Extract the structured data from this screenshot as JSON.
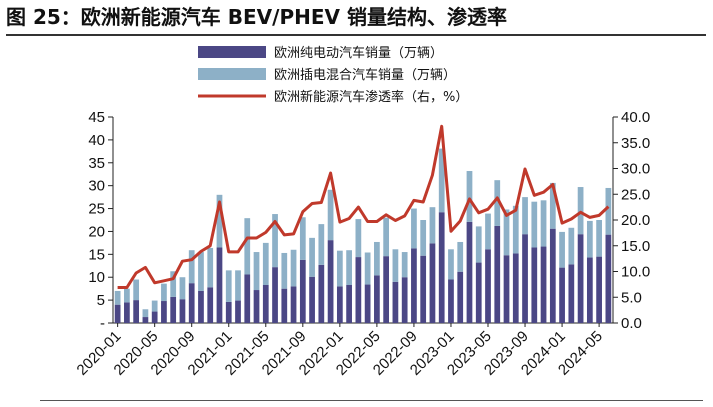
{
  "title": "图 25：欧洲新能源汽车 BEV/PHEV 销量结构、渗透率",
  "chart_data": {
    "type": "bar",
    "stacked": true,
    "colors": {
      "bev": "#4b4785",
      "phev": "#8db0c7",
      "rate": "#c0392b"
    },
    "legend": [
      "欧洲纯电动汽车销量（万辆）",
      "欧洲插电混合汽车销量（万辆）",
      "欧洲新能源汽车渗透率（右，%）"
    ],
    "categories": [
      "2020-01",
      "2020-02",
      "2020-03",
      "2020-04",
      "2020-05",
      "2020-06",
      "2020-07",
      "2020-08",
      "2020-09",
      "2020-10",
      "2020-11",
      "2020-12",
      "2021-01",
      "2021-02",
      "2021-03",
      "2021-04",
      "2021-05",
      "2021-06",
      "2021-07",
      "2021-08",
      "2021-09",
      "2021-10",
      "2021-11",
      "2021-12",
      "2022-01",
      "2022-02",
      "2022-03",
      "2022-04",
      "2022-05",
      "2022-06",
      "2022-07",
      "2022-08",
      "2022-09",
      "2022-10",
      "2022-11",
      "2022-12",
      "2023-01",
      "2023-02",
      "2023-03",
      "2023-04",
      "2023-05",
      "2023-06",
      "2023-07",
      "2023-08",
      "2023-09",
      "2023-10",
      "2023-11",
      "2023-12",
      "2024-01",
      "2024-02",
      "2024-03",
      "2024-04",
      "2024-05",
      "2024-06"
    ],
    "x_tick_labels": [
      "2020-01",
      "2020-05",
      "2020-09",
      "2021-01",
      "2021-05",
      "2021-09",
      "2022-01",
      "2022-05",
      "2022-09",
      "2023-01",
      "2023-05",
      "2023-09",
      "2024-01",
      "2024-05"
    ],
    "series": [
      {
        "name": "欧洲纯电动汽车销量（万辆）",
        "axis": "left",
        "values": [
          4.0,
          4.5,
          5.0,
          1.3,
          2.5,
          4.8,
          5.7,
          5.2,
          8.7,
          7.0,
          7.8,
          16.5,
          4.6,
          4.9,
          10.6,
          7.2,
          8.3,
          12.2,
          7.5,
          8.0,
          13.8,
          10.1,
          12.7,
          18.1,
          8.0,
          8.3,
          14.4,
          8.4,
          10.4,
          14.6,
          9.0,
          10.0,
          16.3,
          14.7,
          17.4,
          24.2,
          9.5,
          11.2,
          22.1,
          13.2,
          16.1,
          21.2,
          14.8,
          15.2,
          19.4,
          16.5,
          16.7,
          20.6,
          12.1,
          12.8,
          19.4,
          14.3,
          14.5,
          19.3
        ]
      },
      {
        "name": "欧洲插电混合汽车销量（万辆）",
        "axis": "left",
        "values": [
          3.0,
          3.0,
          4.5,
          1.7,
          2.4,
          3.8,
          5.6,
          4.8,
          7.2,
          8.5,
          8.6,
          11.5,
          6.9,
          6.6,
          12.3,
          8.3,
          9.2,
          11.6,
          7.8,
          8.0,
          9.3,
          8.5,
          8.9,
          11.0,
          7.8,
          7.6,
          8.3,
          7.0,
          7.3,
          8.4,
          7.1,
          5.5,
          8.7,
          7.8,
          7.9,
          13.9,
          6.6,
          6.5,
          11.1,
          7.9,
          7.8,
          10.0,
          10.0,
          10.4,
          8.1,
          10.0,
          10.1,
          10.0,
          7.8,
          8.0,
          10.3,
          8.0,
          8.0,
          10.2
        ]
      },
      {
        "name": "欧洲新能源汽车渗透率（右，%）",
        "axis": "right",
        "type": "line",
        "values": [
          6.9,
          6.9,
          9.7,
          10.8,
          7.8,
          8.2,
          8.6,
          12.0,
          12.3,
          13.9,
          15.0,
          23.5,
          13.8,
          13.8,
          16.5,
          16.5,
          17.6,
          19.7,
          17.1,
          17.3,
          21.6,
          23.2,
          23.4,
          29.1,
          19.6,
          20.3,
          22.5,
          19.7,
          19.7,
          21.0,
          19.9,
          20.8,
          23.8,
          23.5,
          28.7,
          38.2,
          17.8,
          19.8,
          24.1,
          21.4,
          22.1,
          24.3,
          20.9,
          21.9,
          29.9,
          24.8,
          25.4,
          26.9,
          19.4,
          20.2,
          21.5,
          20.5,
          20.9,
          22.6
        ]
      }
    ],
    "y_left": {
      "min": 0,
      "max": 45,
      "step": 5,
      "tick_labels": [
        "-",
        "5",
        "10",
        "15",
        "20",
        "25",
        "30",
        "35",
        "40",
        "45"
      ]
    },
    "y_right": {
      "min": 0,
      "max": 40,
      "step": 5,
      "tick_labels": [
        "0.0",
        "5.0",
        "10.0",
        "15.0",
        "20.0",
        "25.0",
        "30.0",
        "35.0",
        "40.0"
      ]
    },
    "grid": false,
    "legend_position": "top-center"
  }
}
